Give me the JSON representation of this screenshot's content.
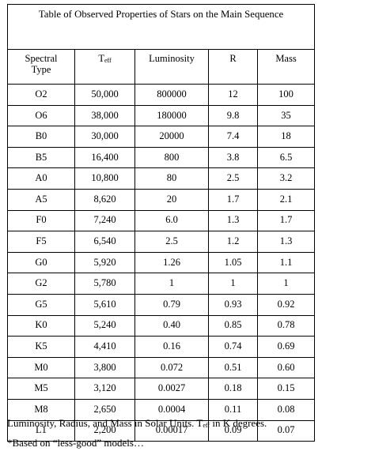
{
  "table": {
    "title": "Table of Observed Properties of Stars on the Main Sequence",
    "headers": {
      "type_line1": "Spectral",
      "type_line2": "Type",
      "teff_main": "T",
      "teff_sub": "eff",
      "luminosity": "Luminosity",
      "radius": "R",
      "mass": "Mass"
    },
    "rows": [
      {
        "type": "O2",
        "teff": "50,000",
        "luminosity": "800000",
        "radius": "12",
        "mass": "100"
      },
      {
        "type": "O6",
        "teff": "38,000",
        "luminosity": "180000",
        "radius": "9.8",
        "mass": "35"
      },
      {
        "type": "B0",
        "teff": "30,000",
        "luminosity": "20000",
        "radius": "7.4",
        "mass": "18"
      },
      {
        "type": "B5",
        "teff": "16,400",
        "luminosity": "800",
        "radius": "3.8",
        "mass": "6.5"
      },
      {
        "type": "A0",
        "teff": "10,800",
        "luminosity": "80",
        "radius": "2.5",
        "mass": "3.2"
      },
      {
        "type": "A5",
        "teff": "8,620",
        "luminosity": "20",
        "radius": "1.7",
        "mass": "2.1"
      },
      {
        "type": "F0",
        "teff": "7,240",
        "luminosity": "6.0",
        "radius": "1.3",
        "mass": "1.7"
      },
      {
        "type": "F5",
        "teff": "6,540",
        "luminosity": "2.5",
        "radius": "1.2",
        "mass": "1.3"
      },
      {
        "type": "G0",
        "teff": "5,920",
        "luminosity": "1.26",
        "radius": "1.05",
        "mass": "1.1"
      },
      {
        "type": "G2",
        "teff": "5,780",
        "luminosity": "1",
        "radius": "1",
        "mass": "1"
      },
      {
        "type": "G5",
        "teff": "5,610",
        "luminosity": "0.79",
        "radius": "0.93",
        "mass": "0.92"
      },
      {
        "type": "K0",
        "teff": "5,240",
        "luminosity": "0.40",
        "radius": "0.85",
        "mass": "0.78"
      },
      {
        "type": "K5",
        "teff": "4,410",
        "luminosity": "0.16",
        "radius": "0.74",
        "mass": "0.69"
      },
      {
        "type": "M0",
        "teff": "3,800",
        "luminosity": "0.072",
        "radius": "0.51",
        "mass": "0.60"
      },
      {
        "type": "M5",
        "teff": "3,120",
        "luminosity": "0.0027",
        "radius": "0.18",
        "mass": "0.15"
      },
      {
        "type": "M8",
        "teff": "2,650",
        "luminosity": "0.0004",
        "radius": "0.11",
        "mass": "0.08"
      },
      {
        "type": "L1",
        "teff": "2,200",
        "luminosity": "0.00017",
        "radius": "0.09",
        "mass": "0.07"
      }
    ]
  },
  "footnotes": {
    "units_before": "Luminosity, Radius, and Mass in Solar Units.  T",
    "units_sub": "eff",
    "units_after": "  in K degrees.",
    "based_on": "*Based on “less-good” models…"
  }
}
